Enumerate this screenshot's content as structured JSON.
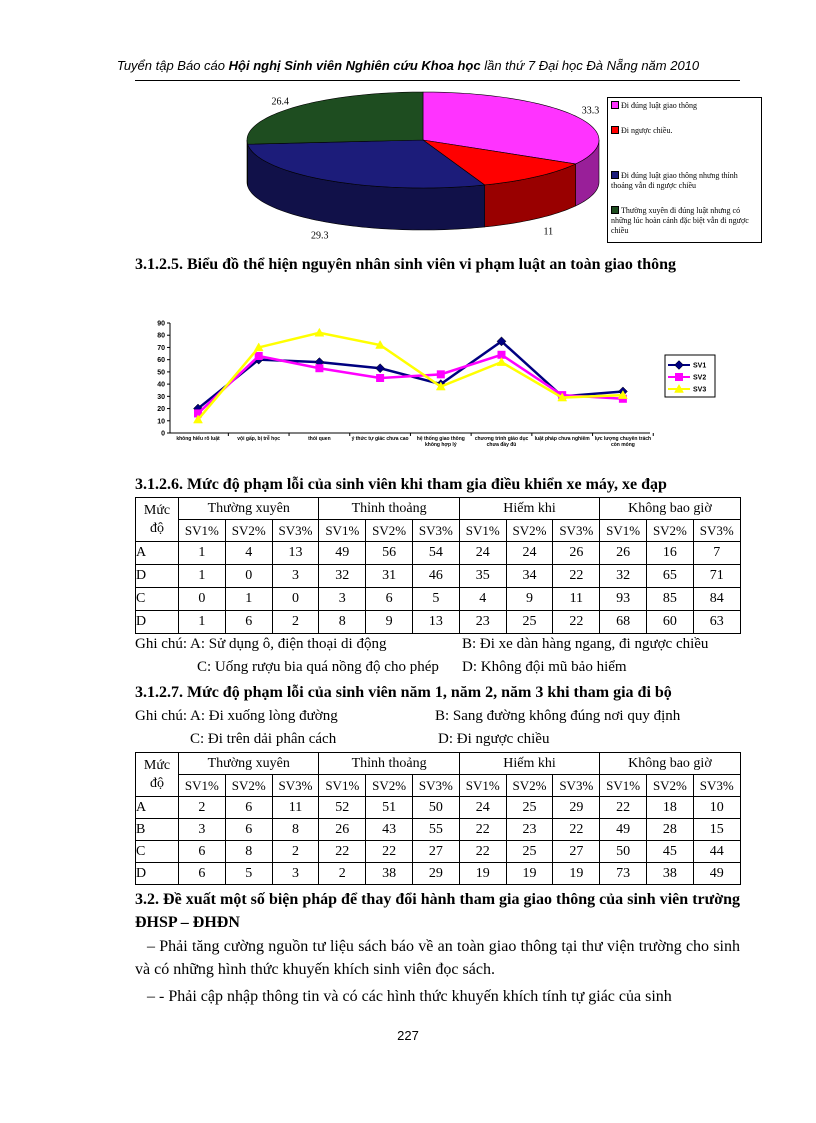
{
  "header": {
    "text_1": "Tuyển tập Báo cáo",
    "text_bold": "Hội nghị Sinh viên Nghiên cứu Khoa học",
    "text_2": "lần thứ 7 Đại học Đà Nẵng năm 2010"
  },
  "chart_data": [
    {
      "type": "pie",
      "categories": [
        "Đi đúng luật giao thông",
        "Đi ngược chiều.",
        "Đi đúng luật giao thông nhưng thỉnh thoảng vẫn đi ngược chiều",
        "Thường xuyên đi đúng luật nhưng có những lúc hoàn cảnh đặc biệt vẫn đi ngược chiều"
      ],
      "values": [
        33.3,
        11,
        29.3,
        26.4
      ],
      "colors": [
        "#ff33ff",
        "#ff0000",
        "#1c1c7a",
        "#1e4d20"
      ]
    },
    {
      "type": "line",
      "categories": [
        "không hiểu rõ luật",
        "vội gấp, bị trễ học",
        "thói quen",
        "ý thức tự giác chưa cao",
        "hệ thống giao thông không hợp lý",
        "chương trình giáo dục chưa đầy đủ",
        "luật pháp chưa nghiêm",
        "lực lượng chuyên trách còn mỏng"
      ],
      "series": [
        {
          "name": "SV1",
          "color": "#000080",
          "marker": "diamond",
          "values": [
            20,
            60,
            58,
            53,
            40,
            75,
            30,
            34
          ]
        },
        {
          "name": "SV2",
          "color": "#ff00ff",
          "marker": "square",
          "values": [
            16,
            63,
            53,
            45,
            48,
            64,
            31,
            28
          ]
        },
        {
          "name": "SV3",
          "color": "#ffff00",
          "marker": "triangle",
          "values": [
            11,
            70,
            82,
            72,
            38,
            58,
            29,
            31
          ]
        }
      ],
      "ylim": [
        0,
        90
      ],
      "yticks": [
        0,
        10,
        20,
        30,
        40,
        50,
        60,
        70,
        80,
        90
      ]
    }
  ],
  "caption_1": "3.1.2.5. Biểu đồ thể hiện nguyên nhân sinh viên vi phạm luật an toàn giao thông",
  "heading_1": "3.1.2.6. Mức độ phạm lỗi của sinh viên khi tham gia điều khiển xe máy, xe đạp",
  "table_1": {
    "corner": "Mức độ",
    "groups": [
      "Thường xuyên",
      "Thỉnh thoảng",
      "Hiếm khi",
      "Không bao giờ"
    ],
    "subheaders": [
      "SV1%",
      "SV2%",
      "SV3%",
      "SV1%",
      "SV2%",
      "SV3%",
      "SV1%",
      "SV2%",
      "SV3%",
      "SV1%",
      "SV2%",
      "SV3%"
    ],
    "rows": [
      [
        "A",
        1,
        4,
        13,
        49,
        56,
        54,
        24,
        24,
        26,
        26,
        16,
        7
      ],
      [
        "D",
        1,
        0,
        3,
        32,
        31,
        46,
        35,
        34,
        22,
        32,
        65,
        71
      ],
      [
        "C",
        0,
        1,
        0,
        3,
        6,
        5,
        4,
        9,
        11,
        93,
        85,
        84
      ],
      [
        "D",
        1,
        6,
        2,
        8,
        9,
        13,
        23,
        25,
        22,
        68,
        60,
        63
      ]
    ]
  },
  "notes_1": [
    "Ghi chú:  A: Sử dụng ô, điện thoại di động",
    "B: Đi xe dàn hàng ngang, đi ngược chiều",
    "C: Uống rượu bia quá nồng độ cho phép",
    "D:  Không đội mũ bảo hiểm"
  ],
  "heading_2": "3.1.2.7. Mức độ phạm lỗi của sinh viên năm 1, năm 2, năm 3 khi tham gia đi bộ",
  "notes_2": [
    "Ghi chú: A: Đi xuống lòng đường",
    "B: Sang đường không đúng nơi quy định",
    "C: Đi trên dải phân cách",
    "D: Đi ngược chiều"
  ],
  "table_2": {
    "corner": "Mức độ",
    "groups": [
      "Thường xuyên",
      "Thỉnh thoảng",
      "Hiếm khi",
      "Không bao giờ"
    ],
    "subheaders": [
      "SV1%",
      "SV2%",
      "SV3%",
      "SV1%",
      "SV2%",
      "SV3%",
      "SV1%",
      "SV2%",
      "SV3%",
      "SV1%",
      "SV2%",
      "SV3%"
    ],
    "rows": [
      [
        "A",
        2,
        6,
        11,
        52,
        51,
        50,
        24,
        25,
        29,
        22,
        18,
        10
      ],
      [
        "B",
        3,
        6,
        8,
        26,
        43,
        55,
        22,
        23,
        22,
        49,
        28,
        15
      ],
      [
        "C",
        6,
        8,
        2,
        22,
        22,
        27,
        22,
        25,
        27,
        50,
        45,
        44
      ],
      [
        "D",
        6,
        5,
        3,
        2,
        38,
        29,
        19,
        19,
        19,
        73,
        38,
        49
      ]
    ]
  },
  "section_heading": "3.2. Đề xuất một số biện pháp để thay đổi hành tham gia giao thông của sinh viên trường ĐHSP – ĐHĐN",
  "paragraphs": [
    "– Phải tăng cường nguồn tư liệu sách báo về an toàn giao thông tại thư viện trường cho sinh và có những hình thức khuyến khích sinh viên đọc sách.",
    "– - Phải cập nhập thông tin và có các hình thức khuyến khích tính tự giác của sinh"
  ],
  "page_number": "227"
}
